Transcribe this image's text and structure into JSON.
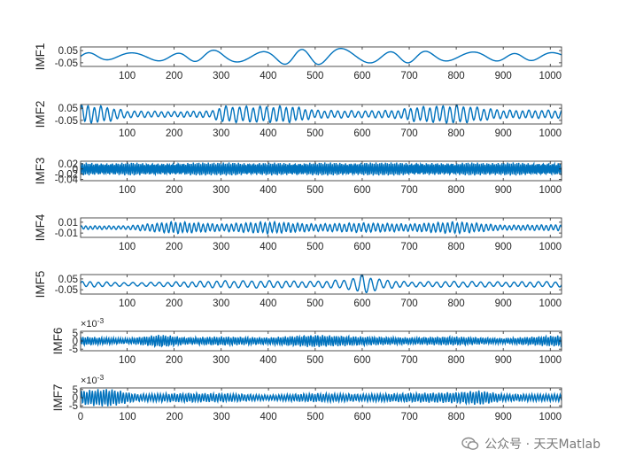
{
  "figure": {
    "background": "#ffffff",
    "line_color": "#0072BD",
    "axis_color": "#262626"
  },
  "watermark": {
    "text": "公众号 · 天天Matlab",
    "icon": "wechat-icon"
  },
  "chart_data": [
    {
      "type": "line",
      "ylabel": "IMF1",
      "xlim": [
        1,
        1024
      ],
      "ylim": [
        -0.08,
        0.08
      ],
      "xticks": [
        100,
        200,
        300,
        400,
        500,
        600,
        700,
        800,
        900,
        1000
      ],
      "yticks": [
        -0.05,
        0.05
      ],
      "ytick_labels": [
        "-0.05",
        "0.05"
      ],
      "exponent": "",
      "envelope": {
        "x": [
          0,
          100,
          200,
          300,
          400,
          500,
          600,
          700,
          800,
          900,
          1024
        ],
        "amp": [
          0.03,
          0.03,
          0.03,
          0.05,
          0.045,
          0.07,
          0.05,
          0.045,
          0.04,
          0.03,
          0.03
        ]
      },
      "period": 90,
      "x_label_visible": true
    },
    {
      "type": "line",
      "ylabel": "IMF2",
      "xlim": [
        1,
        1024
      ],
      "ylim": [
        -0.08,
        0.08
      ],
      "xticks": [
        100,
        200,
        300,
        400,
        500,
        600,
        700,
        800,
        900,
        1000
      ],
      "yticks": [
        -0.05,
        0.05
      ],
      "ytick_labels": [
        "-0.05",
        "0.05"
      ],
      "exponent": "",
      "envelope": {
        "x": [
          0,
          50,
          100,
          200,
          280,
          300,
          450,
          500,
          600,
          680,
          700,
          800,
          900,
          1024
        ],
        "amp": [
          0.07,
          0.06,
          0.025,
          0.02,
          0.025,
          0.06,
          0.06,
          0.03,
          0.025,
          0.03,
          0.05,
          0.07,
          0.03,
          0.03
        ]
      },
      "period": 14,
      "x_label_visible": true
    },
    {
      "type": "line",
      "ylabel": "IMF3",
      "xlim": [
        1,
        1024
      ],
      "ylim": [
        -0.045,
        0.03
      ],
      "xticks": [
        100,
        200,
        300,
        400,
        500,
        600,
        700,
        800,
        900,
        1000
      ],
      "yticks": [
        -0.04,
        -0.02,
        0,
        0.02
      ],
      "ytick_labels": [
        "-0.04",
        "-0.02",
        "0",
        "0.02"
      ],
      "exponent": "",
      "envelope": {
        "x": [
          0,
          1024
        ],
        "amp": [
          0.022,
          0.022
        ]
      },
      "period": 4,
      "x_label_visible": true
    },
    {
      "type": "line",
      "ylabel": "IMF4",
      "xlim": [
        1,
        1024
      ],
      "ylim": [
        -0.018,
        0.018
      ],
      "xticks": [
        100,
        200,
        300,
        400,
        500,
        600,
        700,
        800,
        900,
        1000
      ],
      "yticks": [
        -0.01,
        0.01
      ],
      "ytick_labels": [
        "-0.01",
        "0.01"
      ],
      "exponent": "",
      "envelope": {
        "x": [
          0,
          100,
          200,
          300,
          400,
          500,
          600,
          700,
          800,
          900,
          1024
        ],
        "amp": [
          0.003,
          0.003,
          0.01,
          0.006,
          0.01,
          0.006,
          0.008,
          0.006,
          0.01,
          0.004,
          0.005
        ]
      },
      "period": 10,
      "x_label_visible": true
    },
    {
      "type": "line",
      "ylabel": "IMF5",
      "xlim": [
        1,
        1024
      ],
      "ylim": [
        -0.09,
        0.09
      ],
      "xticks": [
        100,
        200,
        300,
        400,
        500,
        600,
        700,
        800,
        900,
        1000
      ],
      "yticks": [
        -0.05,
        0.05
      ],
      "ytick_labels": [
        "-0.05",
        "0.05"
      ],
      "exponent": "",
      "envelope": {
        "x": [
          0,
          100,
          200,
          300,
          400,
          500,
          570,
          600,
          640,
          700,
          800,
          900,
          1024
        ],
        "amp": [
          0.025,
          0.015,
          0.02,
          0.03,
          0.03,
          0.025,
          0.04,
          0.085,
          0.04,
          0.02,
          0.025,
          0.02,
          0.025
        ]
      },
      "period": 18,
      "x_label_visible": true
    },
    {
      "type": "line",
      "ylabel": "IMF6",
      "xlim": [
        1,
        1024
      ],
      "ylim": [
        -6,
        6
      ],
      "xticks": [
        100,
        200,
        300,
        400,
        500,
        600,
        700,
        800,
        900,
        1000
      ],
      "yticks": [
        -5,
        0,
        5
      ],
      "ytick_labels": [
        "-5",
        "0",
        "5"
      ],
      "exponent": "×10^-3",
      "envelope": {
        "x": [
          0,
          100,
          170,
          230,
          300,
          400,
          500,
          540,
          600,
          700,
          800,
          900,
          1000,
          1024
        ],
        "amp": [
          2.5,
          1.5,
          3.5,
          2,
          2.5,
          2,
          3.5,
          3,
          2.5,
          2,
          2.5,
          1.5,
          3,
          3
        ]
      },
      "period": 5,
      "x_label_visible": true
    },
    {
      "type": "line",
      "ylabel": "IMF7",
      "xlim": [
        0,
        1024
      ],
      "ylim": [
        -6,
        6
      ],
      "xticks": [
        0,
        100,
        200,
        300,
        400,
        500,
        600,
        700,
        800,
        900,
        1000
      ],
      "yticks": [
        -5,
        0,
        5
      ],
      "ytick_labels": [
        "-5",
        "0",
        "5"
      ],
      "exponent": "×10^-3",
      "envelope": {
        "x": [
          0,
          60,
          120,
          200,
          300,
          400,
          500,
          600,
          700,
          800,
          850,
          900,
          1024
        ],
        "amp": [
          4,
          5,
          2,
          2.5,
          2.5,
          1.5,
          2.5,
          2,
          2.5,
          3,
          4,
          2,
          2
        ]
      },
      "period": 6,
      "x_label_visible": true
    }
  ]
}
